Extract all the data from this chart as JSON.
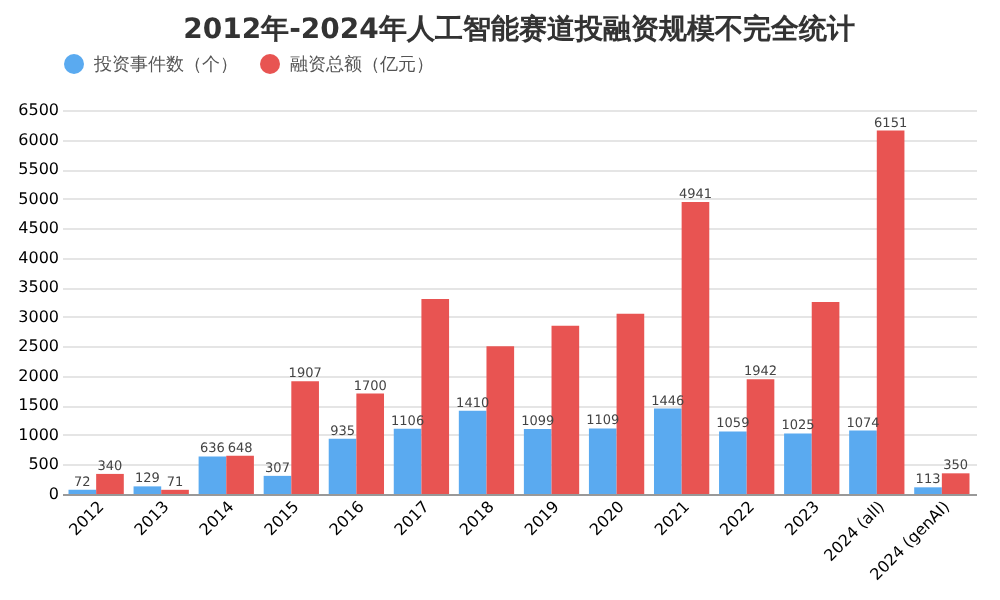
{
  "chart_data": {
    "type": "bar",
    "title": "2012年-2024年人工智能赛道投融资规模不完全统计",
    "categories": [
      "2012",
      "2013",
      "2014",
      "2015",
      "2016",
      "2017",
      "2018",
      "2019",
      "2020",
      "2021",
      "2022",
      "2023",
      "2024 (all)",
      "2024 (genAI)"
    ],
    "series": [
      {
        "name": "投资事件数（个）",
        "color": "#5aaaf0",
        "values": [
          72,
          129,
          636,
          307,
          935,
          1106,
          1410,
          1099,
          1109,
          1446,
          1059,
          1025,
          1074,
          113
        ],
        "value_labels": [
          "72",
          "129",
          "636",
          "307",
          "935",
          "1106",
          "1410",
          "1099",
          "1109",
          "1446",
          "1059",
          "1025",
          "1074",
          "113"
        ]
      },
      {
        "name": "融资总额（亿元）",
        "color": "#e85452",
        "values": [
          340,
          71,
          648,
          1907,
          1700,
          3300,
          2500,
          2850,
          3050,
          4941,
          1942,
          3250,
          6151,
          350
        ],
        "value_labels": [
          "340",
          "71",
          "648",
          "1907",
          "1700",
          null,
          null,
          null,
          null,
          "4941",
          "1942",
          null,
          "6151",
          "350"
        ]
      }
    ],
    "ylim": [
      0,
      6500
    ],
    "yticks": [
      0,
      500,
      1000,
      1500,
      2000,
      2500,
      3000,
      3500,
      4000,
      4500,
      5000,
      5500,
      6000,
      6500
    ],
    "grid": "y",
    "legend": "top"
  }
}
